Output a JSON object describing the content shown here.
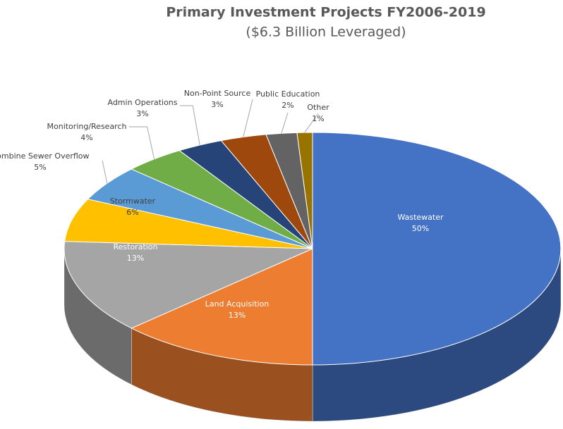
{
  "chart_data": {
    "type": "pie3d",
    "title": "Primary Investment Projects FY2006-2019",
    "subtitle": "($6.3 Billion Leveraged)",
    "categories": [
      "Wastewater",
      "Land Acquisition",
      "Restoration",
      "Stormwater",
      "Combine Sewer Overflow",
      "Monitoring/Research",
      "Admin Operations",
      "Non-Point Source",
      "Public Education",
      "Other"
    ],
    "values": [
      50,
      13,
      13,
      6,
      5,
      4,
      3,
      3,
      2,
      1
    ],
    "value_labels": [
      "50%",
      "13%",
      "13%",
      "6%",
      "5%",
      "4%",
      "3%",
      "3%",
      "2%",
      "1%"
    ],
    "colors": [
      "#4472c4",
      "#ed7d31",
      "#a5a5a5",
      "#ffc000",
      "#5b9bd5",
      "#70ad47",
      "#264478",
      "#9e480e",
      "#636363",
      "#997300"
    ]
  }
}
